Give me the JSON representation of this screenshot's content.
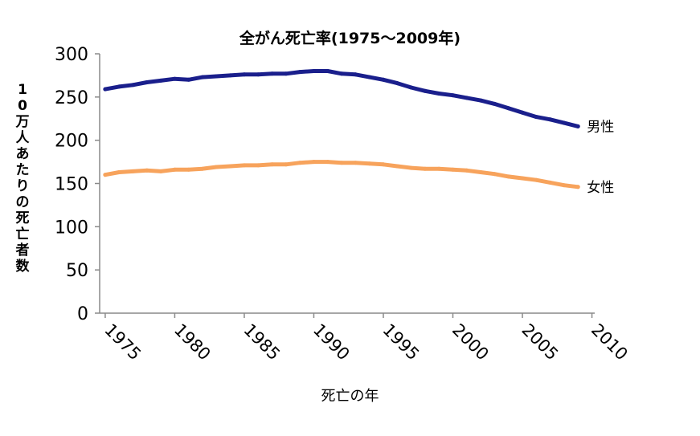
{
  "chart_data": {
    "type": "line",
    "title": "全がん死亡率(1975～2009年)",
    "xlabel": "死亡の年",
    "ylabel": "10万人あたりの死亡者数",
    "x": [
      1975,
      1976,
      1977,
      1978,
      1979,
      1980,
      1981,
      1982,
      1983,
      1984,
      1985,
      1986,
      1987,
      1988,
      1989,
      1990,
      1991,
      1992,
      1993,
      1994,
      1995,
      1996,
      1997,
      1998,
      1999,
      2000,
      2001,
      2002,
      2003,
      2004,
      2005,
      2006,
      2007,
      2008,
      2009
    ],
    "xticks": [
      "1975",
      "1980",
      "1985",
      "1990",
      "1995",
      "2000",
      "2005",
      "2010"
    ],
    "yticks": [
      "0",
      "50",
      "100",
      "150",
      "200",
      "250",
      "300"
    ],
    "xlim": [
      1974.6,
      2010.2
    ],
    "ylim": [
      0,
      300
    ],
    "grid": false,
    "colors": {
      "男性": "#1a1f8c",
      "女性": "#f7a35c"
    },
    "series": [
      {
        "name": "男性",
        "values": [
          259,
          262,
          264,
          267,
          269,
          271,
          270,
          273,
          274,
          275,
          276,
          276,
          277,
          277,
          279,
          280,
          280,
          277,
          276,
          273,
          270,
          266,
          261,
          257,
          254,
          252,
          249,
          246,
          242,
          237,
          232,
          227,
          224,
          220,
          216
        ]
      },
      {
        "name": "女性",
        "values": [
          160,
          163,
          164,
          165,
          164,
          166,
          166,
          167,
          169,
          170,
          171,
          171,
          172,
          172,
          174,
          175,
          175,
          174,
          174,
          173,
          172,
          170,
          168,
          167,
          167,
          166,
          165,
          163,
          161,
          158,
          156,
          154,
          151,
          148,
          146
        ]
      }
    ]
  }
}
